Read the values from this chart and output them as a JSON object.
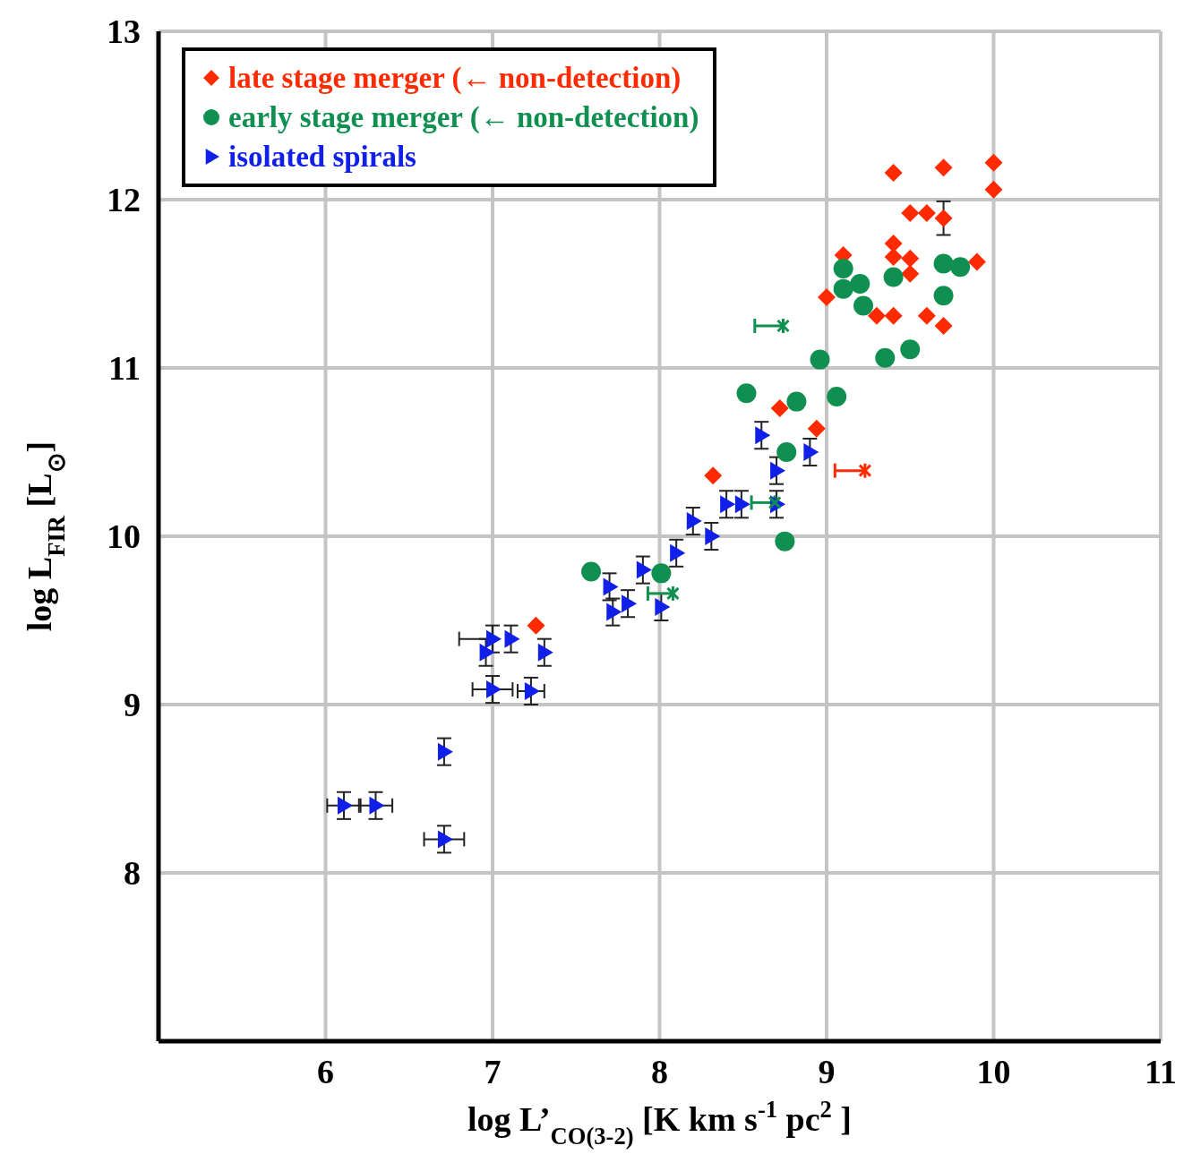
{
  "chart_data": {
    "type": "scatter",
    "xlabel": "log L’$_{CO(3-2)}$ [K km s$^{-1}$ pc$^{2}$ ]",
    "ylabel": "log L$_{FIR}$ [L$_{⊙}$]",
    "xlim": [
      5,
      11
    ],
    "ylim": [
      7,
      13
    ],
    "xticks": [
      6,
      7,
      8,
      9,
      10,
      11
    ],
    "yticks": [
      8,
      9,
      10,
      11,
      12,
      13
    ],
    "grid": true,
    "legend": "top left",
    "series": [
      {
        "name": "late stage merger  (← non-detection)",
        "color": "#ff2a00",
        "marker": "diamond",
        "x": [
          9.4,
          9.7,
          10.0,
          10.0,
          9.5,
          9.6,
          9.7,
          9.4,
          9.4,
          9.5,
          9.5,
          9.1,
          9.9,
          9.0,
          9.3,
          9.4,
          9.6,
          9.7,
          8.72,
          8.94,
          8.32,
          7.26
        ],
        "values": [
          12.16,
          12.19,
          12.22,
          12.06,
          11.92,
          11.92,
          11.89,
          11.74,
          11.66,
          11.65,
          11.56,
          11.67,
          11.63,
          11.42,
          11.31,
          11.31,
          11.31,
          11.25,
          10.76,
          10.64,
          10.36,
          9.47
        ],
        "errors": [
          null,
          null,
          null,
          null,
          null,
          null,
          0.1,
          null,
          null,
          null,
          null,
          null,
          null,
          null,
          null,
          null,
          null,
          null,
          null,
          null,
          null,
          null
        ]
      },
      {
        "name": "early stage merger (← non-detection)",
        "color": "#0f9050",
        "marker": "circle",
        "x": [
          9.1,
          9.1,
          9.2,
          9.22,
          9.4,
          9.7,
          9.8,
          9.7,
          9.35,
          9.5,
          8.96,
          8.52,
          8.82,
          9.06,
          8.76,
          8.75,
          7.59,
          8.01
        ],
        "values": [
          11.59,
          11.47,
          11.5,
          11.37,
          11.54,
          11.62,
          11.6,
          11.43,
          11.06,
          11.11,
          11.05,
          10.85,
          10.8,
          10.83,
          10.5,
          9.97,
          9.79,
          9.78
        ]
      },
      {
        "name": "isolated spirals",
        "color": "#1020e8",
        "marker": "triangle",
        "x": [
          8.61,
          8.9,
          8.7,
          8.4,
          8.49,
          8.7,
          8.2,
          8.31,
          8.1,
          7.9,
          7.7,
          7.81,
          7.72,
          8.01,
          7.0,
          7.11,
          7.31,
          6.96,
          7.0,
          7.23,
          6.71,
          6.11,
          6.3,
          6.71
        ],
        "values": [
          10.6,
          10.5,
          10.39,
          10.19,
          10.19,
          10.19,
          10.09,
          10.0,
          9.9,
          9.8,
          9.7,
          9.6,
          9.55,
          9.58,
          9.39,
          9.39,
          9.31,
          9.31,
          9.09,
          9.08,
          8.72,
          8.4,
          8.4,
          8.2
        ],
        "errors": [
          0.08,
          0.08,
          0.08,
          0.08,
          0.08,
          0.08,
          0.08,
          0.08,
          0.08,
          0.08,
          0.08,
          0.08,
          0.08,
          0.08,
          0.08,
          0.08,
          0.08,
          0.08,
          0.08,
          0.08,
          0.08,
          0.08,
          0.08,
          0.08
        ],
        "xerrors": [
          null,
          null,
          null,
          null,
          null,
          null,
          null,
          null,
          null,
          null,
          null,
          null,
          null,
          null,
          [
            6.8,
            7.0
          ],
          null,
          null,
          null,
          0.12,
          0.08,
          null,
          0.1,
          0.1,
          0.12
        ]
      },
      {
        "color": "#ff2a00",
        "marker": "cross",
        "x": [
          9.23
        ],
        "values": [
          10.39
        ],
        "xerrors": [
          [
            9.05,
            9.23
          ]
        ]
      },
      {
        "color": "#0f9050",
        "marker": "cross",
        "x": [
          8.74,
          8.69,
          8.08
        ],
        "values": [
          11.25,
          10.2,
          9.66
        ],
        "xerrors": [
          [
            8.57,
            8.74
          ],
          [
            8.55,
            8.69
          ],
          [
            7.93,
            8.08
          ]
        ]
      }
    ]
  }
}
